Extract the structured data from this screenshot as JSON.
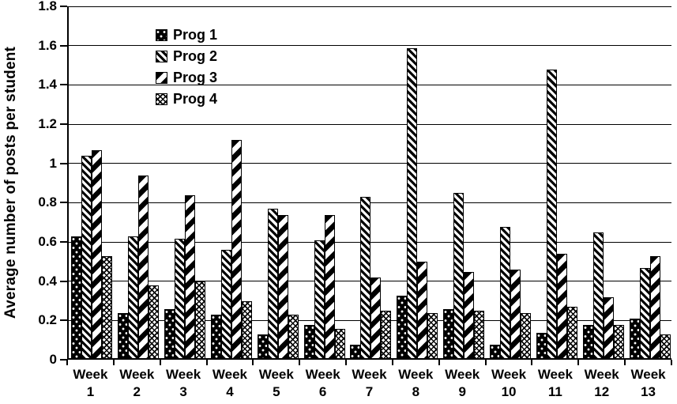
{
  "chart_data": {
    "type": "bar",
    "title": "",
    "xlabel": "",
    "ylabel": "Average number of posts per student",
    "ylim": [
      0,
      1.8
    ],
    "ytick_step": 0.2,
    "ytick_labels": [
      "0",
      "0.2",
      "0.4",
      "0.6",
      "0.8",
      "1",
      "1.2",
      "1.4",
      "1.6",
      "1.8"
    ],
    "grid": true,
    "legend_position": "top-left-inside",
    "categories": [
      "Week 1",
      "Week 2",
      "Week 3",
      "Week 4",
      "Week 5",
      "Week 6",
      "Week 7",
      "Week 8",
      "Week 9",
      "Week 10",
      "Week 11",
      "Week 12",
      "Week 13"
    ],
    "series": [
      {
        "name": "Prog 1",
        "pattern": "dots-on-black",
        "values": [
          0.62,
          0.23,
          0.25,
          0.22,
          0.12,
          0.17,
          0.07,
          0.32,
          0.25,
          0.07,
          0.13,
          0.17,
          0.2
        ]
      },
      {
        "name": "Prog 2",
        "pattern": "backslash-hatch",
        "values": [
          1.03,
          0.62,
          0.61,
          0.55,
          0.76,
          0.6,
          0.82,
          1.58,
          0.84,
          0.67,
          1.47,
          0.64,
          0.46
        ]
      },
      {
        "name": "Prog 3",
        "pattern": "slash-thick",
        "values": [
          1.06,
          0.93,
          0.83,
          1.11,
          0.73,
          0.73,
          0.41,
          0.49,
          0.44,
          0.45,
          0.53,
          0.31,
          0.52
        ]
      },
      {
        "name": "Prog 4",
        "pattern": "diamond-check",
        "values": [
          0.52,
          0.37,
          0.39,
          0.29,
          0.22,
          0.15,
          0.24,
          0.23,
          0.24,
          0.23,
          0.26,
          0.17,
          0.12
        ]
      }
    ],
    "colors": {
      "foreground": "#000000",
      "background": "#ffffff"
    }
  }
}
